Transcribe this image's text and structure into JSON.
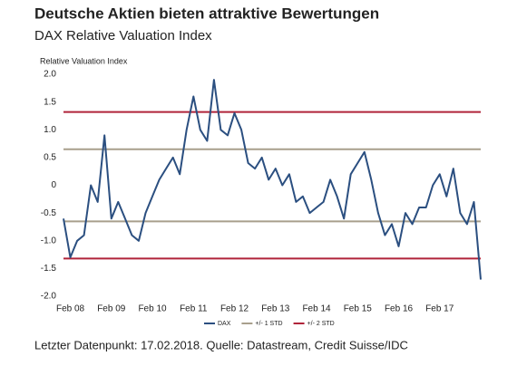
{
  "chart_data": {
    "type": "line",
    "title": "Deutsche Aktien bieten attraktive Bewertungen",
    "subtitle": "DAX Relative Valuation Index",
    "y_label": "Relative Valuation Index",
    "footnote": "Letzter Datenpunkt: 17.02.2018. Quelle: Datastream, Credit Suisse/IDC",
    "categories": [
      null,
      "Feb 08",
      null,
      null,
      null,
      null,
      null,
      "Feb 09",
      null,
      null,
      null,
      null,
      null,
      "Feb 10",
      null,
      null,
      null,
      null,
      null,
      "Feb 11",
      null,
      null,
      null,
      null,
      null,
      "Feb 12",
      null,
      null,
      null,
      null,
      null,
      "Feb 13",
      null,
      null,
      null,
      null,
      null,
      "Feb 14",
      null,
      null,
      null,
      null,
      null,
      "Feb 15",
      null,
      null,
      null,
      null,
      null,
      "Feb 16",
      null,
      null,
      null,
      null,
      null,
      "Feb 17",
      null,
      null,
      null,
      null,
      null,
      null
    ],
    "series": [
      {
        "name": "DAX",
        "color": "#2b4f80",
        "values": [
          -0.6,
          -1.3,
          -1.0,
          -0.9,
          0.0,
          -0.3,
          0.9,
          -0.6,
          -0.3,
          -0.6,
          -0.9,
          -1.0,
          -0.5,
          -0.2,
          0.1,
          0.3,
          0.5,
          0.2,
          1.0,
          1.6,
          1.0,
          0.8,
          1.9,
          1.0,
          0.9,
          1.3,
          1.0,
          0.4,
          0.3,
          0.5,
          0.1,
          0.3,
          0.0,
          0.2,
          -0.3,
          -0.2,
          -0.5,
          -0.4,
          -0.3,
          0.1,
          -0.2,
          -0.6,
          0.2,
          0.4,
          0.6,
          0.1,
          -0.5,
          -0.9,
          -0.7,
          -1.1,
          -0.5,
          -0.7,
          -0.4,
          -0.4,
          0.0,
          0.2,
          -0.2,
          0.3,
          -0.5,
          -0.7,
          -0.3,
          -1.7
        ]
      }
    ],
    "hlines": [
      {
        "name": "+/- 1 STD",
        "color": "#a89f8c",
        "values": [
          0.65,
          -0.65
        ]
      },
      {
        "name": "+/- 2 STD",
        "color": "#b0243a",
        "values": [
          1.32,
          -1.32
        ]
      }
    ],
    "ylim": [
      -2.0,
      2.0
    ],
    "yticks": [
      {
        "value": 2.0,
        "label": "2.0"
      },
      {
        "value": 1.5,
        "label": "1.5"
      },
      {
        "value": 1.0,
        "label": "1.0"
      },
      {
        "value": 0.5,
        "label": "0.5"
      },
      0,
      {
        "value": -0.5,
        "label": "-0.5"
      },
      {
        "value": -1.0,
        "label": "-1.0"
      },
      {
        "value": -1.5,
        "label": "-1.5"
      },
      {
        "value": -2.0,
        "label": "-2.0"
      }
    ]
  }
}
